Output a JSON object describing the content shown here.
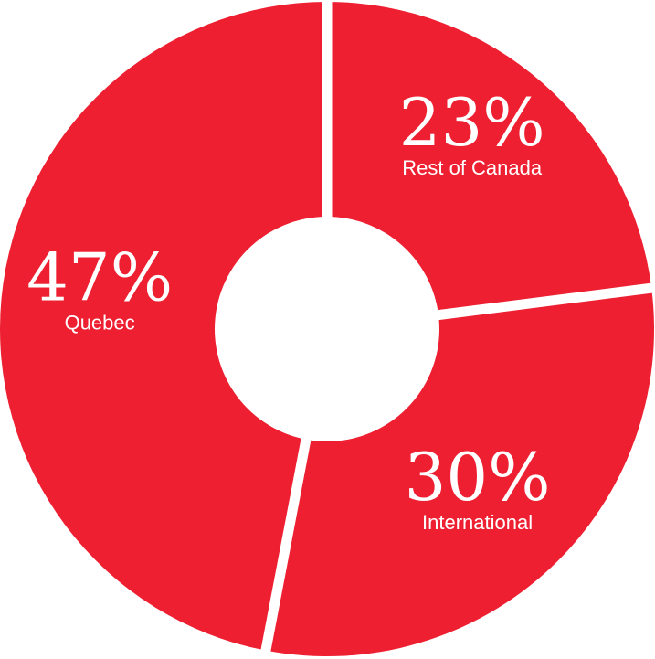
{
  "chart_data": {
    "type": "pie",
    "variant": "donut",
    "title": "",
    "legend": "none",
    "slices": [
      {
        "label": "Rest of Canada",
        "value": 23,
        "value_label": "23%",
        "color": "#ed1f31"
      },
      {
        "label": "International",
        "value": 30,
        "value_label": "30%",
        "color": "#ed1f31"
      },
      {
        "label": "Quebec",
        "value": 47,
        "value_label": "47%",
        "color": "#ed1f31"
      }
    ],
    "separator_color": "#ffffff",
    "hole_color": "#ffffff"
  }
}
